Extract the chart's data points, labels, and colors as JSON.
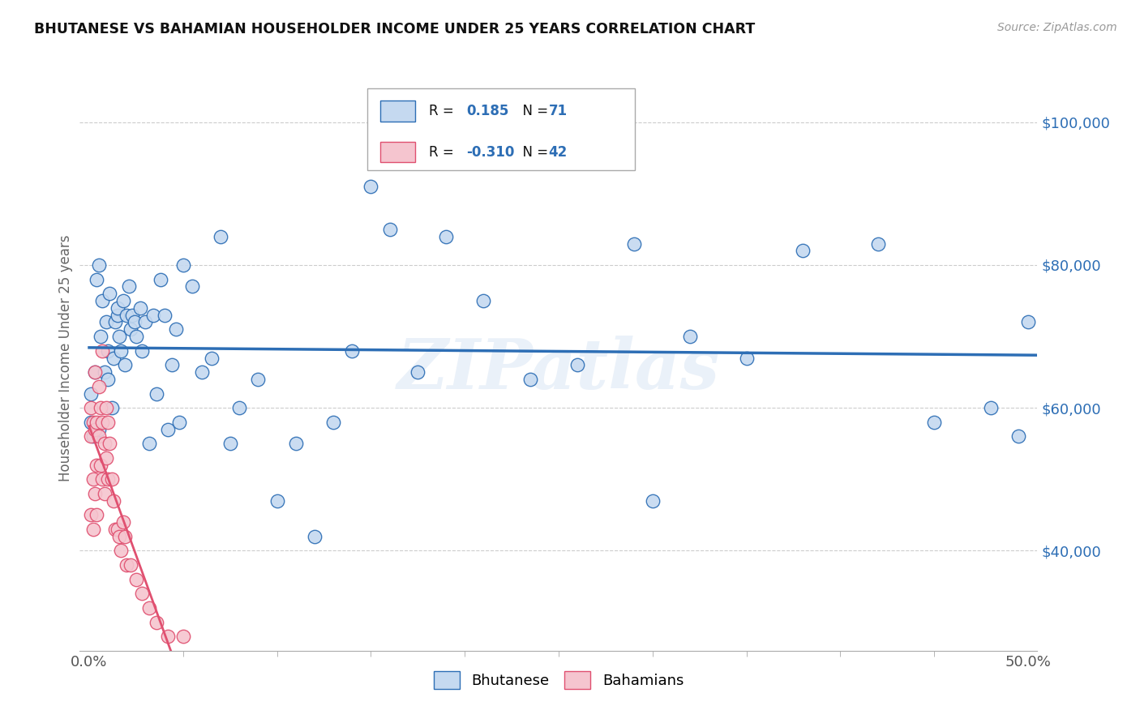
{
  "title": "BHUTANESE VS BAHAMIAN HOUSEHOLDER INCOME UNDER 25 YEARS CORRELATION CHART",
  "source": "Source: ZipAtlas.com",
  "ylabel_label": "Householder Income Under 25 years",
  "legend_label1": "Bhutanese",
  "legend_label2": "Bahamians",
  "blue_color": "#c5d9f0",
  "pink_color": "#f5c5cf",
  "blue_line_color": "#2d6eb5",
  "pink_line_color": "#e05070",
  "R_text_color": "#2d6eb5",
  "watermark": "ZIPatlas",
  "background_color": "#ffffff",
  "grid_color": "#cccccc",
  "xlim": [
    -0.005,
    0.505
  ],
  "ylim": [
    26000,
    108000
  ],
  "yticks": [
    40000,
    60000,
    80000,
    100000
  ],
  "ytick_labels": [
    "$40,000",
    "$60,000",
    "$80,000",
    "$100,000"
  ],
  "blue_scatter_x": [
    0.001,
    0.001,
    0.002,
    0.003,
    0.004,
    0.005,
    0.005,
    0.006,
    0.007,
    0.008,
    0.009,
    0.01,
    0.01,
    0.011,
    0.012,
    0.013,
    0.014,
    0.015,
    0.015,
    0.016,
    0.017,
    0.018,
    0.019,
    0.02,
    0.021,
    0.022,
    0.023,
    0.024,
    0.025,
    0.027,
    0.028,
    0.03,
    0.032,
    0.034,
    0.036,
    0.038,
    0.04,
    0.042,
    0.044,
    0.046,
    0.048,
    0.05,
    0.055,
    0.06,
    0.065,
    0.07,
    0.075,
    0.08,
    0.09,
    0.1,
    0.11,
    0.12,
    0.13,
    0.14,
    0.15,
    0.16,
    0.175,
    0.19,
    0.21,
    0.235,
    0.26,
    0.29,
    0.32,
    0.35,
    0.38,
    0.42,
    0.45,
    0.48,
    0.495,
    0.3,
    0.5
  ],
  "blue_scatter_y": [
    58000,
    62000,
    56000,
    65000,
    78000,
    80000,
    57000,
    70000,
    75000,
    65000,
    72000,
    68000,
    64000,
    76000,
    60000,
    67000,
    72000,
    73000,
    74000,
    70000,
    68000,
    75000,
    66000,
    73000,
    77000,
    71000,
    73000,
    72000,
    70000,
    74000,
    68000,
    72000,
    55000,
    73000,
    62000,
    78000,
    73000,
    57000,
    66000,
    71000,
    58000,
    80000,
    77000,
    65000,
    67000,
    84000,
    55000,
    60000,
    64000,
    47000,
    55000,
    42000,
    58000,
    68000,
    91000,
    85000,
    65000,
    84000,
    75000,
    64000,
    66000,
    83000,
    70000,
    67000,
    82000,
    83000,
    58000,
    60000,
    56000,
    47000,
    72000
  ],
  "pink_scatter_x": [
    0.001,
    0.001,
    0.001,
    0.002,
    0.002,
    0.002,
    0.003,
    0.003,
    0.003,
    0.004,
    0.004,
    0.004,
    0.005,
    0.005,
    0.006,
    0.006,
    0.007,
    0.007,
    0.007,
    0.008,
    0.008,
    0.009,
    0.009,
    0.01,
    0.01,
    0.011,
    0.012,
    0.013,
    0.014,
    0.015,
    0.016,
    0.017,
    0.018,
    0.019,
    0.02,
    0.022,
    0.025,
    0.028,
    0.032,
    0.036,
    0.042,
    0.05
  ],
  "pink_scatter_y": [
    56000,
    60000,
    45000,
    58000,
    50000,
    43000,
    65000,
    57000,
    48000,
    58000,
    52000,
    45000,
    63000,
    56000,
    60000,
    52000,
    68000,
    58000,
    50000,
    55000,
    48000,
    60000,
    53000,
    58000,
    50000,
    55000,
    50000,
    47000,
    43000,
    43000,
    42000,
    40000,
    44000,
    42000,
    38000,
    38000,
    36000,
    34000,
    32000,
    30000,
    28000,
    28000
  ]
}
